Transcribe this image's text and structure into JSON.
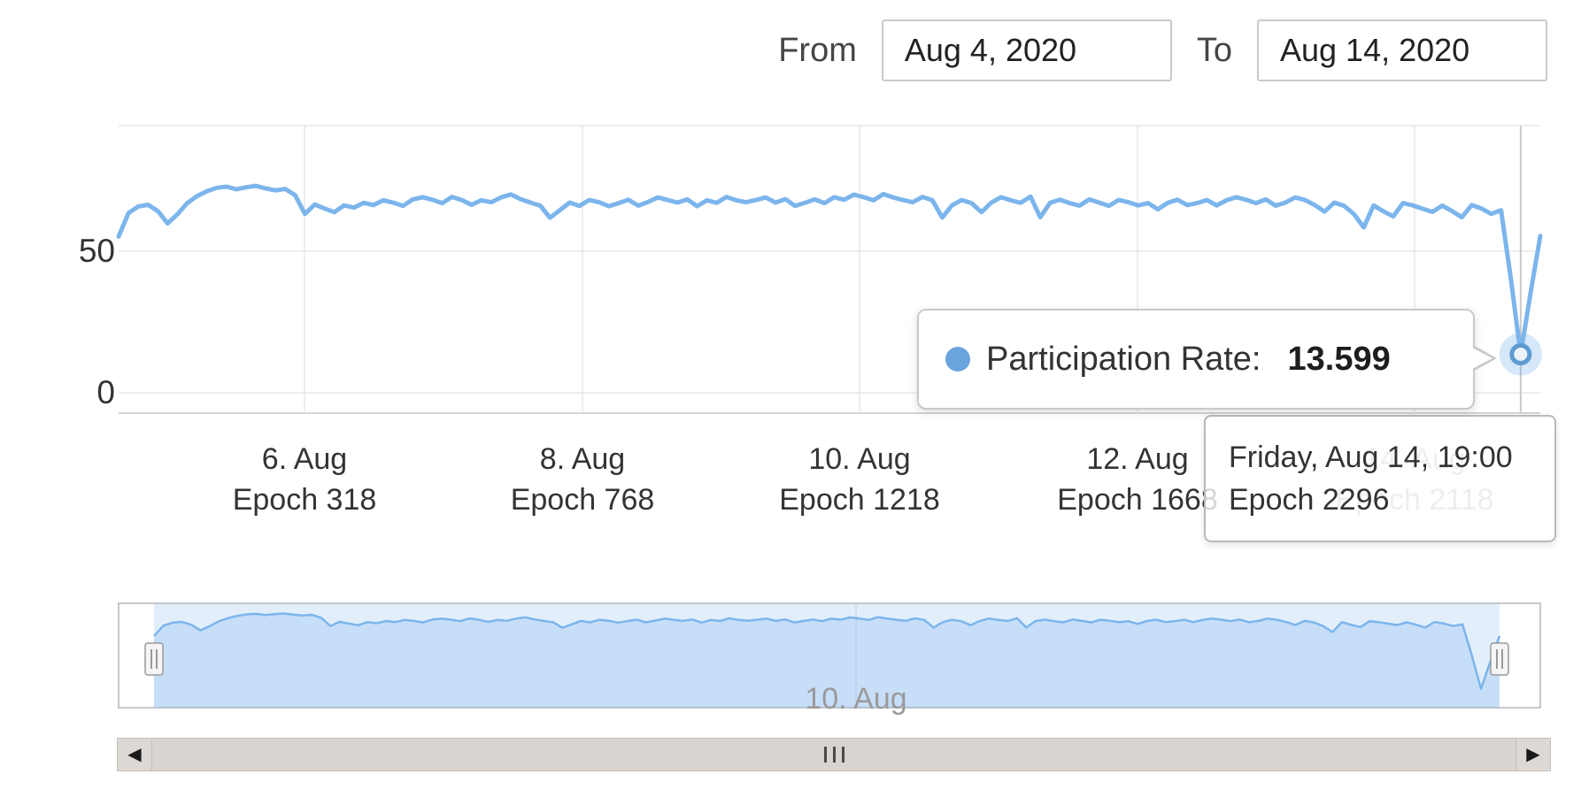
{
  "header": {
    "from_label": "From",
    "from_value": "Aug 4, 2020",
    "to_label": "To",
    "to_value": "Aug 14, 2020"
  },
  "tooltip": {
    "series_label": "Participation Rate:",
    "value": "13.599"
  },
  "crosshair_tooltip": {
    "line1": "Friday, Aug 14, 19:00",
    "line2": "Epoch 2296"
  },
  "icons": {
    "scrollbar_left_arrow": "◀",
    "scrollbar_right_arrow": "▶"
  },
  "colors": {
    "series_line": "#7cb5ec",
    "tooltip_dot": "#6aa4dd",
    "navigator_mask": "rgba(124,181,236,0.22)",
    "navigator_area": "rgba(124,181,236,0.28)",
    "grid": "#e7e7e7",
    "crosshair": "#c9c9c9",
    "muted_label": "#a9a9a9"
  },
  "chart_data": {
    "type": "line",
    "title": "",
    "xlabel": "",
    "ylabel": "",
    "ylim": [
      0,
      94
    ],
    "yticks": [
      50,
      0
    ],
    "ytick_labels": [
      "50",
      "0"
    ],
    "grid": "on",
    "legend": "off",
    "x_range": {
      "from": "Aug 4, 2020",
      "to": "Aug 14, 2020 19:00"
    },
    "xticks": [
      {
        "date": "6. Aug",
        "epoch": "Epoch 318"
      },
      {
        "date": "8. Aug",
        "epoch": "Epoch 768"
      },
      {
        "date": "10. Aug",
        "epoch": "Epoch 1218"
      },
      {
        "date": "12. Aug",
        "epoch": "Epoch 1668"
      },
      {
        "date": "14. Aug",
        "epoch": "Epoch 2118",
        "muted": true
      }
    ],
    "series": [
      {
        "name": "Participation Rate",
        "values": [
          55.2,
          63.5,
          65.8,
          66.4,
          64.2,
          59.8,
          63.1,
          67.0,
          69.5,
          71.2,
          72.4,
          72.8,
          71.9,
          72.6,
          73.1,
          72.2,
          71.5,
          72.0,
          69.8,
          63.2,
          66.5,
          65.1,
          63.8,
          66.2,
          65.4,
          67.1,
          66.3,
          68.0,
          67.2,
          66.0,
          68.3,
          69.1,
          68.2,
          67.0,
          69.2,
          68.1,
          66.4,
          68.0,
          67.3,
          69.0,
          70.1,
          68.4,
          67.2,
          66.1,
          61.8,
          64.5,
          67.2,
          66.0,
          68.1,
          67.3,
          65.9,
          67.0,
          68.2,
          66.1,
          67.4,
          69.0,
          68.1,
          67.2,
          68.3,
          65.9,
          68.0,
          67.1,
          69.2,
          68.0,
          67.3,
          68.1,
          69.0,
          67.2,
          68.4,
          66.0,
          67.1,
          68.3,
          67.0,
          69.1,
          68.2,
          70.0,
          69.1,
          68.0,
          70.2,
          69.0,
          68.1,
          67.3,
          69.2,
          68.0,
          61.9,
          66.2,
          68.1,
          67.0,
          63.8,
          67.2,
          69.1,
          68.0,
          67.1,
          69.3,
          62.0,
          67.1,
          68.2,
          67.0,
          66.1,
          68.3,
          67.2,
          66.0,
          68.1,
          67.3,
          66.2,
          67.0,
          64.8,
          67.1,
          68.2,
          66.3,
          67.0,
          68.1,
          66.2,
          68.0,
          69.1,
          68.2,
          67.0,
          68.3,
          66.1,
          67.2,
          69.0,
          68.1,
          66.3,
          64.0,
          67.2,
          66.0,
          63.1,
          58.4,
          66.2,
          64.1,
          62.3,
          67.0,
          66.2,
          65.0,
          63.9,
          66.1,
          64.2,
          62.0,
          66.3,
          65.1,
          63.2,
          64.5,
          40.2,
          13.599,
          35.0,
          55.4
        ]
      }
    ],
    "hover_point": {
      "index": 143,
      "value": 13.599,
      "date": "Friday, Aug 14, 19:00",
      "epoch": "Epoch 2296"
    },
    "navigator": {
      "tick_label": "10. Aug",
      "selected_range": "full"
    }
  }
}
